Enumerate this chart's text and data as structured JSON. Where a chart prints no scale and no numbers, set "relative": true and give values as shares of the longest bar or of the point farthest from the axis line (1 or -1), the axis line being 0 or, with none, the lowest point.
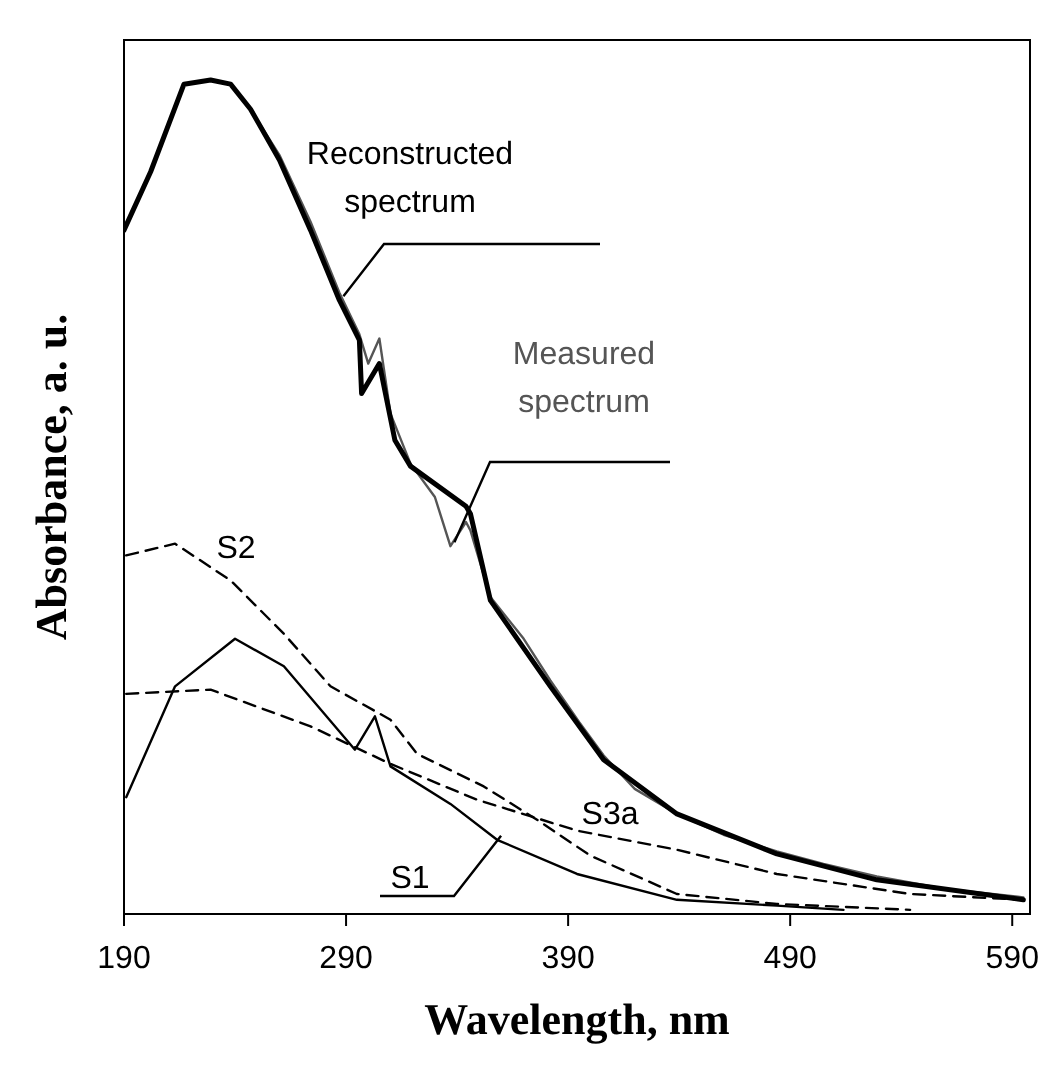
{
  "chart_data": {
    "type": "line",
    "xlabel": "Wavelength, nm",
    "ylabel": "Absorbance, a. u.",
    "relative": true,
    "xlim": [
      190,
      598
    ],
    "xticks": [
      190,
      290,
      390,
      490,
      590
    ],
    "grid": false,
    "marker": "none",
    "series": [
      {
        "name": "Measured spectrum",
        "color": "#555555",
        "line_style": "solid",
        "x": [
          190,
          202,
          217,
          229,
          238,
          247,
          260,
          274,
          287,
          296,
          300,
          305,
          310,
          319,
          330,
          337,
          344,
          346,
          355,
          370,
          382,
          395,
          406,
          420,
          439,
          460,
          484,
          505,
          529,
          560,
          595
        ],
        "values": [
          0.82,
          0.89,
          0.995,
          1.0,
          0.995,
          0.965,
          0.91,
          0.83,
          0.745,
          0.695,
          0.66,
          0.69,
          0.6,
          0.54,
          0.5,
          0.441,
          0.47,
          0.46,
          0.38,
          0.33,
          0.28,
          0.23,
          0.19,
          0.15,
          0.12,
          0.095,
          0.075,
          0.06,
          0.045,
          0.03,
          0.02
        ]
      },
      {
        "name": "Reconstructed spectrum",
        "color": "#000000",
        "line_style": "solid",
        "x": [
          190,
          202,
          217,
          229,
          238,
          247,
          260,
          274,
          287,
          296,
          297,
          305,
          312,
          319,
          344,
          346,
          355,
          382,
          406,
          439,
          484,
          529,
          595
        ],
        "values": [
          0.82,
          0.89,
          0.995,
          1.0,
          0.995,
          0.965,
          0.904,
          0.82,
          0.736,
          0.688,
          0.624,
          0.66,
          0.568,
          0.537,
          0.489,
          0.48,
          0.376,
          0.273,
          0.185,
          0.12,
          0.072,
          0.041,
          0.017
        ]
      },
      {
        "name": "S2",
        "color": "#000000",
        "line_style": "dashed",
        "x": [
          191,
          213,
          238,
          262,
          283,
          310,
          322,
          352,
          376,
          400,
          439,
          484,
          544
        ],
        "values": [
          0.43,
          0.444,
          0.4,
          0.336,
          0.273,
          0.233,
          0.192,
          0.153,
          0.113,
          0.07,
          0.024,
          0.012,
          0.005
        ]
      },
      {
        "name": "S1",
        "color": "#000000",
        "line_style": "solid",
        "x": [
          191,
          213,
          240,
          262,
          294,
          303,
          310,
          337,
          358,
          394,
          439,
          484,
          514
        ],
        "values": [
          0.14,
          0.273,
          0.33,
          0.297,
          0.197,
          0.237,
          0.177,
          0.132,
          0.089,
          0.048,
          0.017,
          0.01,
          0.005
        ]
      },
      {
        "name": "S3a",
        "color": "#000000",
        "line_style": "dashed",
        "x": [
          191,
          229,
          274,
          310,
          349,
          394,
          439,
          484,
          544,
          595
        ],
        "values": [
          0.264,
          0.269,
          0.225,
          0.18,
          0.137,
          0.1,
          0.077,
          0.048,
          0.024,
          0.017
        ]
      }
    ]
  }
}
